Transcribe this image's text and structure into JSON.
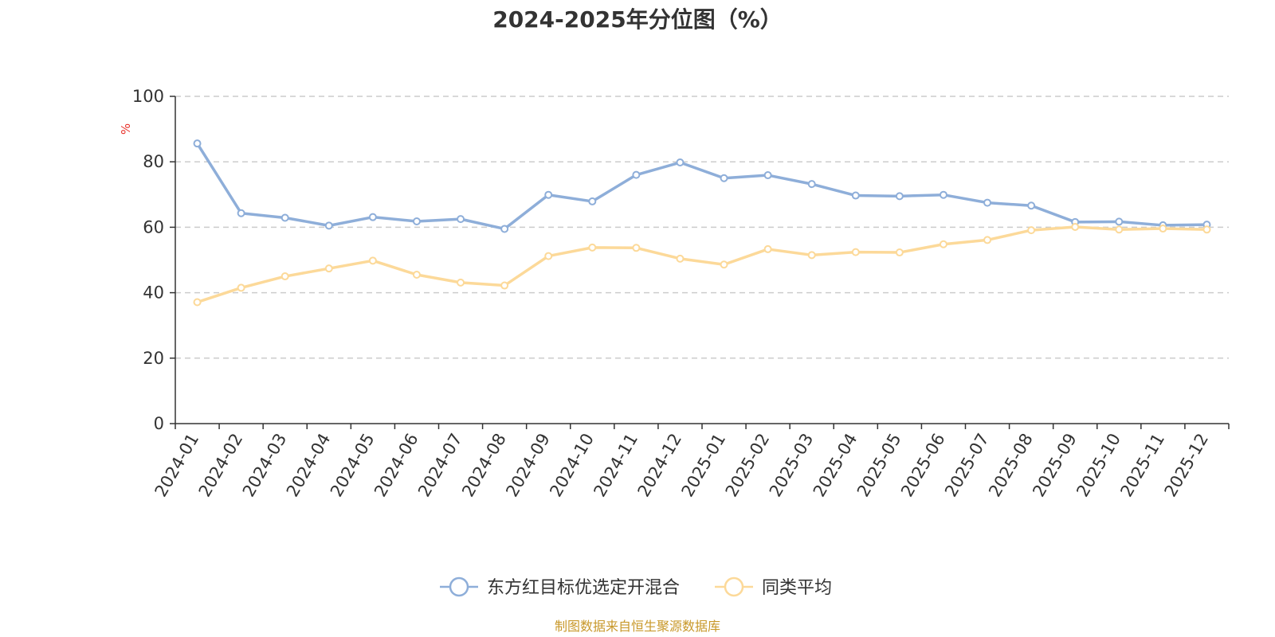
{
  "chart_data": {
    "type": "line",
    "title": "2024-2025年分位图（%）",
    "ylabel": "%",
    "xlabel": "",
    "ylim": [
      0,
      100
    ],
    "yticks": [
      0,
      20,
      40,
      60,
      80,
      100
    ],
    "grid": true,
    "legend_position": "bottom-center",
    "categories": [
      "2024-01",
      "2024-02",
      "2024-03",
      "2024-04",
      "2024-05",
      "2024-06",
      "2024-07",
      "2024-08",
      "2024-09",
      "2024-10",
      "2024-11",
      "2024-12",
      "2025-01",
      "2025-02",
      "2025-03",
      "2025-04",
      "2025-05",
      "2025-06",
      "2025-07",
      "2025-08",
      "2025-09",
      "2025-10",
      "2025-11",
      "2025-12"
    ],
    "series": [
      {
        "name": "东方红目标优选定开混合",
        "color": "#8eaed9",
        "values": [
          85.6,
          64.3,
          62.9,
          60.5,
          63.1,
          61.8,
          62.5,
          59.5,
          69.9,
          67.9,
          76.0,
          79.8,
          75.0,
          75.9,
          73.2,
          69.7,
          69.5,
          69.9,
          67.5,
          66.6,
          61.6,
          61.7,
          60.6,
          60.8
        ]
      },
      {
        "name": "同类平均",
        "color": "#fcd999",
        "values": [
          37.1,
          41.5,
          45.0,
          47.4,
          49.8,
          45.5,
          43.1,
          42.2,
          51.2,
          53.8,
          53.7,
          50.4,
          48.6,
          53.3,
          51.5,
          52.4,
          52.3,
          54.8,
          56.1,
          59.1,
          60.1,
          59.3,
          59.6,
          59.3
        ]
      }
    ]
  },
  "source_text": "制图数据来自恒生聚源数据库"
}
